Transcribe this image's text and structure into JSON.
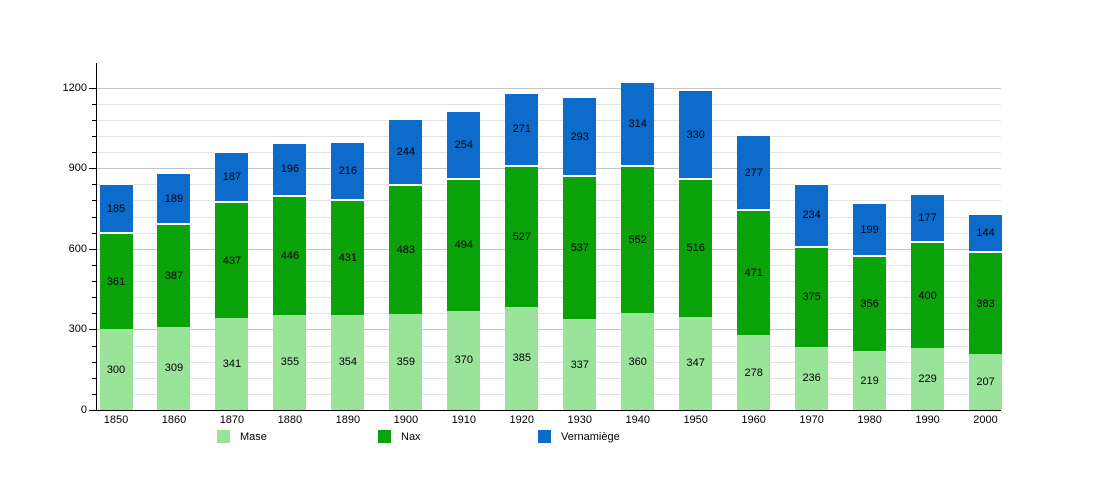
{
  "chart": {
    "background": "#ffffff",
    "axis_color": "#000000",
    "grid_major_color": "#c6c6c6",
    "grid_minor_color": "#e3e3e3",
    "label_color": "#000000"
  },
  "chart_data": {
    "type": "bar",
    "stacked": true,
    "title": "",
    "xlabel": "",
    "ylabel": "",
    "categories": [
      "1850",
      "1860",
      "1870",
      "1880",
      "1890",
      "1900",
      "1910",
      "1920",
      "1930",
      "1940",
      "1950",
      "1960",
      "1970",
      "1980",
      "1990",
      "2000"
    ],
    "series": [
      {
        "name": "Mase",
        "color": "#9ae49a",
        "values": [
          300,
          309,
          341,
          355,
          354,
          359,
          370,
          385,
          337,
          360,
          347,
          278,
          236,
          219,
          229,
          207
        ]
      },
      {
        "name": "Nax",
        "color": "#0aa30a",
        "values": [
          361,
          387,
          437,
          446,
          431,
          483,
          494,
          527,
          537,
          552,
          516,
          471,
          375,
          356,
          400,
          383
        ]
      },
      {
        "name": "Vernamiège",
        "color": "#0d6bcb",
        "values": [
          185,
          189,
          187,
          196,
          216,
          244,
          254,
          271,
          293,
          314,
          330,
          277,
          234,
          199,
          177,
          144
        ]
      }
    ],
    "ylim": [
      0,
      1291
    ],
    "y_major_ticks": [
      0,
      300,
      600,
      900,
      1200
    ],
    "y_minor_step": 60,
    "grid": true,
    "value_labels": true,
    "legend_position": "bottom"
  },
  "legend": {
    "items": [
      {
        "label": "Mase"
      },
      {
        "label": "Nax"
      },
      {
        "label": "Vernamiège"
      }
    ]
  }
}
